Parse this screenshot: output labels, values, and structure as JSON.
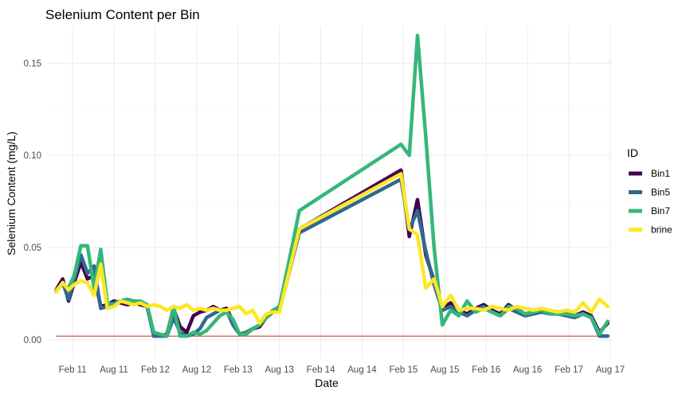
{
  "chart_data": {
    "type": "line",
    "title": "Selenium Content per Bin",
    "xlabel": "Date",
    "ylabel": "Selenium Content (mg/L)",
    "ylim": [
      -0.01,
      0.17
    ],
    "yticks": [
      0.0,
      0.05,
      0.1,
      0.15
    ],
    "ytick_labels": [
      "0.00",
      "0.05",
      "0.10",
      "0.15"
    ],
    "xlim": [
      2010.8,
      2017.62
    ],
    "xticks": [
      2011.1,
      2011.6,
      2012.1,
      2012.6,
      2013.1,
      2013.6,
      2014.1,
      2014.6,
      2015.1,
      2015.6,
      2016.1,
      2016.6,
      2017.1,
      2017.6
    ],
    "xtick_labels": [
      "Feb 11",
      "Aug 11",
      "Feb 12",
      "Aug 12",
      "Feb 13",
      "Aug 13",
      "Feb 14",
      "Aug 14",
      "Feb 15",
      "Aug 15",
      "Feb 16",
      "Aug 16",
      "Feb 17",
      "Aug 17"
    ],
    "grid": true,
    "legend_title": "ID",
    "legend_position": "right",
    "reference_line": {
      "y": 0.002,
      "color": "#cc3322"
    },
    "series": [
      {
        "name": "Bin1",
        "color": "#440154",
        "x": [
          2010.9,
          2010.98,
          2011.05,
          2011.12,
          2011.2,
          2011.28,
          2011.36,
          2011.44,
          2011.52,
          2011.6,
          2011.68,
          2011.76,
          2011.84,
          2011.92,
          2012.0,
          2012.08,
          2012.16,
          2012.24,
          2012.32,
          2012.4,
          2012.48,
          2012.56,
          2012.64,
          2012.72,
          2012.8,
          2012.88,
          2012.96,
          2013.04,
          2013.12,
          2013.2,
          2013.28,
          2013.36,
          2013.44,
          2013.52,
          2013.6,
          2013.68,
          2013.76,
          2013.84,
          2015.07,
          2015.17,
          2015.27,
          2015.37,
          2015.47,
          2015.57,
          2015.67,
          2015.77,
          2015.87,
          2015.97,
          2016.07,
          2016.17,
          2016.27,
          2016.37,
          2016.47,
          2016.57,
          2016.67,
          2016.77,
          2016.87,
          2016.97,
          2017.07,
          2017.17,
          2017.27,
          2017.37,
          2017.47,
          2017.57
        ],
        "values": [
          0.027,
          0.033,
          0.021,
          0.031,
          0.042,
          0.033,
          0.035,
          0.018,
          0.019,
          0.021,
          0.02,
          0.019,
          0.02,
          0.019,
          0.018,
          0.003,
          0.002,
          0.003,
          0.017,
          0.007,
          0.004,
          0.013,
          0.015,
          0.016,
          0.018,
          0.016,
          0.017,
          0.01,
          0.003,
          0.004,
          0.006,
          0.007,
          0.012,
          0.015,
          0.016,
          0.03,
          0.045,
          0.06,
          0.092,
          0.056,
          0.076,
          0.046,
          0.032,
          0.017,
          0.02,
          0.016,
          0.014,
          0.017,
          0.019,
          0.016,
          0.014,
          0.019,
          0.016,
          0.014,
          0.015,
          0.016,
          0.015,
          0.015,
          0.014,
          0.013,
          0.015,
          0.013,
          0.004,
          0.009
        ]
      },
      {
        "name": "Bin5",
        "color": "#31688e",
        "x": [
          2010.9,
          2010.98,
          2011.05,
          2011.12,
          2011.2,
          2011.28,
          2011.36,
          2011.44,
          2011.52,
          2011.6,
          2011.68,
          2011.76,
          2011.84,
          2011.92,
          2012.0,
          2012.08,
          2012.16,
          2012.24,
          2012.32,
          2012.4,
          2012.48,
          2012.56,
          2012.64,
          2012.72,
          2012.8,
          2012.88,
          2012.96,
          2013.04,
          2013.12,
          2013.2,
          2013.28,
          2013.36,
          2013.44,
          2013.52,
          2013.6,
          2013.68,
          2013.76,
          2013.84,
          2015.07,
          2015.17,
          2015.27,
          2015.37,
          2015.47,
          2015.57,
          2015.67,
          2015.77,
          2015.87,
          2015.97,
          2016.07,
          2016.17,
          2016.27,
          2016.37,
          2016.47,
          2016.57,
          2016.67,
          2016.77,
          2016.87,
          2016.97,
          2017.07,
          2017.17,
          2017.27,
          2017.37,
          2017.47,
          2017.57
        ],
        "values": [
          0.026,
          0.031,
          0.022,
          0.033,
          0.046,
          0.036,
          0.04,
          0.017,
          0.018,
          0.02,
          0.021,
          0.02,
          0.021,
          0.02,
          0.019,
          0.002,
          0.002,
          0.002,
          0.012,
          0.004,
          0.002,
          0.003,
          0.006,
          0.012,
          0.014,
          0.016,
          0.016,
          0.008,
          0.003,
          0.004,
          0.006,
          0.008,
          0.012,
          0.015,
          0.016,
          0.03,
          0.044,
          0.058,
          0.087,
          0.06,
          0.07,
          0.048,
          0.03,
          0.016,
          0.018,
          0.015,
          0.013,
          0.016,
          0.018,
          0.015,
          0.013,
          0.017,
          0.015,
          0.013,
          0.014,
          0.015,
          0.014,
          0.014,
          0.013,
          0.012,
          0.014,
          0.012,
          0.002,
          0.002
        ]
      },
      {
        "name": "Bin7",
        "color": "#35b779",
        "x": [
          2010.9,
          2010.98,
          2011.05,
          2011.12,
          2011.2,
          2011.28,
          2011.36,
          2011.44,
          2011.52,
          2011.6,
          2011.68,
          2011.76,
          2011.84,
          2011.92,
          2012.0,
          2012.08,
          2012.16,
          2012.24,
          2012.32,
          2012.4,
          2012.48,
          2012.56,
          2012.64,
          2012.72,
          2012.8,
          2012.88,
          2012.96,
          2013.04,
          2013.12,
          2013.2,
          2013.28,
          2013.36,
          2013.44,
          2013.52,
          2013.6,
          2013.68,
          2013.76,
          2013.84,
          2015.07,
          2015.17,
          2015.27,
          2015.37,
          2015.47,
          2015.57,
          2015.67,
          2015.77,
          2015.87,
          2015.97,
          2016.07,
          2016.17,
          2016.27,
          2016.37,
          2016.47,
          2016.57,
          2016.67,
          2016.77,
          2016.87,
          2016.97,
          2017.07,
          2017.17,
          2017.27,
          2017.37,
          2017.47,
          2017.57
        ],
        "values": [
          0.027,
          0.03,
          0.028,
          0.035,
          0.051,
          0.051,
          0.028,
          0.049,
          0.02,
          0.019,
          0.021,
          0.022,
          0.021,
          0.021,
          0.019,
          0.004,
          0.003,
          0.002,
          0.018,
          0.002,
          0.002,
          0.004,
          0.003,
          0.005,
          0.009,
          0.013,
          0.015,
          0.011,
          0.003,
          0.003,
          0.006,
          0.008,
          0.012,
          0.016,
          0.018,
          0.035,
          0.052,
          0.07,
          0.106,
          0.1,
          0.165,
          0.11,
          0.05,
          0.008,
          0.016,
          0.013,
          0.021,
          0.015,
          0.017,
          0.015,
          0.013,
          0.018,
          0.017,
          0.014,
          0.015,
          0.016,
          0.014,
          0.014,
          0.014,
          0.013,
          0.014,
          0.012,
          0.003,
          0.01
        ]
      },
      {
        "name": "brine",
        "color": "#fde725",
        "x": [
          2010.9,
          2010.98,
          2011.05,
          2011.12,
          2011.2,
          2011.28,
          2011.36,
          2011.44,
          2011.52,
          2011.6,
          2011.68,
          2011.76,
          2011.84,
          2011.92,
          2012.0,
          2012.08,
          2012.16,
          2012.24,
          2012.32,
          2012.4,
          2012.48,
          2012.56,
          2012.64,
          2012.72,
          2012.8,
          2012.88,
          2012.96,
          2013.04,
          2013.12,
          2013.2,
          2013.28,
          2013.36,
          2013.44,
          2013.52,
          2013.6,
          2013.68,
          2013.76,
          2013.84,
          2015.07,
          2015.17,
          2015.27,
          2015.37,
          2015.47,
          2015.57,
          2015.67,
          2015.77,
          2015.87,
          2015.97,
          2016.07,
          2016.17,
          2016.27,
          2016.37,
          2016.47,
          2016.57,
          2016.67,
          2016.77,
          2016.87,
          2016.97,
          2017.07,
          2017.17,
          2017.27,
          2017.37,
          2017.47,
          2017.57
        ],
        "values": [
          0.026,
          0.031,
          0.027,
          0.03,
          0.032,
          0.031,
          0.024,
          0.041,
          0.017,
          0.018,
          0.021,
          0.02,
          0.019,
          0.02,
          0.018,
          0.019,
          0.018,
          0.016,
          0.018,
          0.017,
          0.019,
          0.016,
          0.017,
          0.016,
          0.017,
          0.016,
          0.016,
          0.017,
          0.018,
          0.014,
          0.016,
          0.009,
          0.014,
          0.015,
          0.015,
          0.03,
          0.045,
          0.06,
          0.09,
          0.06,
          0.057,
          0.028,
          0.033,
          0.018,
          0.024,
          0.016,
          0.017,
          0.017,
          0.016,
          0.018,
          0.017,
          0.016,
          0.018,
          0.017,
          0.016,
          0.017,
          0.016,
          0.015,
          0.016,
          0.015,
          0.02,
          0.015,
          0.022,
          0.018
        ]
      }
    ]
  }
}
